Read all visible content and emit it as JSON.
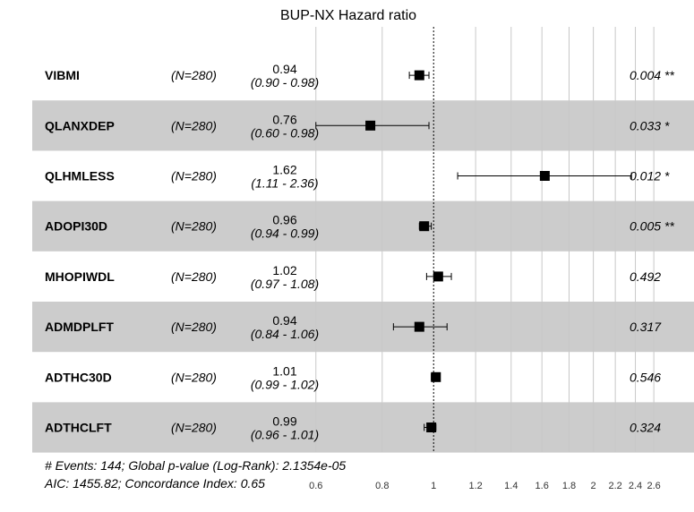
{
  "chart_data": {
    "type": "forest",
    "title": "BUP-NX Hazard ratio",
    "xscale": "log",
    "xlim": [
      0.56,
      2.66
    ],
    "reference_line": 1,
    "x_ticks": [
      "0.6",
      "0.8",
      "1",
      "1.2",
      "1.4",
      "1.6",
      "1.8",
      "2",
      "2.2",
      "2.4",
      "2.6"
    ],
    "x_tick_values": [
      0.6,
      0.8,
      1,
      1.2,
      1.4,
      1.6,
      1.8,
      2,
      2.2,
      2.4,
      2.6
    ],
    "rows": [
      {
        "variable": "VIBMI",
        "n": "(N=280)",
        "estimate": 0.94,
        "lower": 0.9,
        "upper": 0.98,
        "estimate_label": "0.94",
        "ci_label": "(0.90 - 0.98)",
        "p_label": "0.004 **",
        "shaded": false
      },
      {
        "variable": "QLANXDEP",
        "n": "(N=280)",
        "estimate": 0.76,
        "lower": 0.6,
        "upper": 0.98,
        "estimate_label": "0.76",
        "ci_label": "(0.60 - 0.98)",
        "p_label": "0.033 *",
        "shaded": true
      },
      {
        "variable": "QLHMLESS",
        "n": "(N=280)",
        "estimate": 1.62,
        "lower": 1.11,
        "upper": 2.36,
        "estimate_label": "1.62",
        "ci_label": "(1.11 - 2.36)",
        "p_label": "0.012 *",
        "shaded": false
      },
      {
        "variable": "ADOPI30D",
        "n": "(N=280)",
        "estimate": 0.96,
        "lower": 0.94,
        "upper": 0.99,
        "estimate_label": "0.96",
        "ci_label": "(0.94 - 0.99)",
        "p_label": "0.005 **",
        "shaded": true
      },
      {
        "variable": "MHOPIWDL",
        "n": "(N=280)",
        "estimate": 1.02,
        "lower": 0.97,
        "upper": 1.08,
        "estimate_label": "1.02",
        "ci_label": "(0.97 - 1.08)",
        "p_label": "0.492",
        "shaded": false
      },
      {
        "variable": "ADMDPLFT",
        "n": "(N=280)",
        "estimate": 0.94,
        "lower": 0.84,
        "upper": 1.06,
        "estimate_label": "0.94",
        "ci_label": "(0.84 - 1.06)",
        "p_label": "0.317",
        "shaded": true
      },
      {
        "variable": "ADTHC30D",
        "n": "(N=280)",
        "estimate": 1.01,
        "lower": 0.99,
        "upper": 1.02,
        "estimate_label": "1.01",
        "ci_label": "(0.99 - 1.02)",
        "p_label": "0.546",
        "shaded": false
      },
      {
        "variable": "ADTHCLFT",
        "n": "(N=280)",
        "estimate": 0.99,
        "lower": 0.96,
        "upper": 1.01,
        "estimate_label": "0.99",
        "ci_label": "(0.96 - 1.01)",
        "p_label": "0.324",
        "shaded": true
      }
    ],
    "footer": [
      "# Events: 144; Global p-value (Log-Rank): 2.1354e-05",
      "AIC: 1455.82; Concordance Index: 0.65"
    ],
    "colors": {
      "shade": "#cccccc",
      "grid": "#c8c8c8",
      "marker": "#000000"
    }
  }
}
